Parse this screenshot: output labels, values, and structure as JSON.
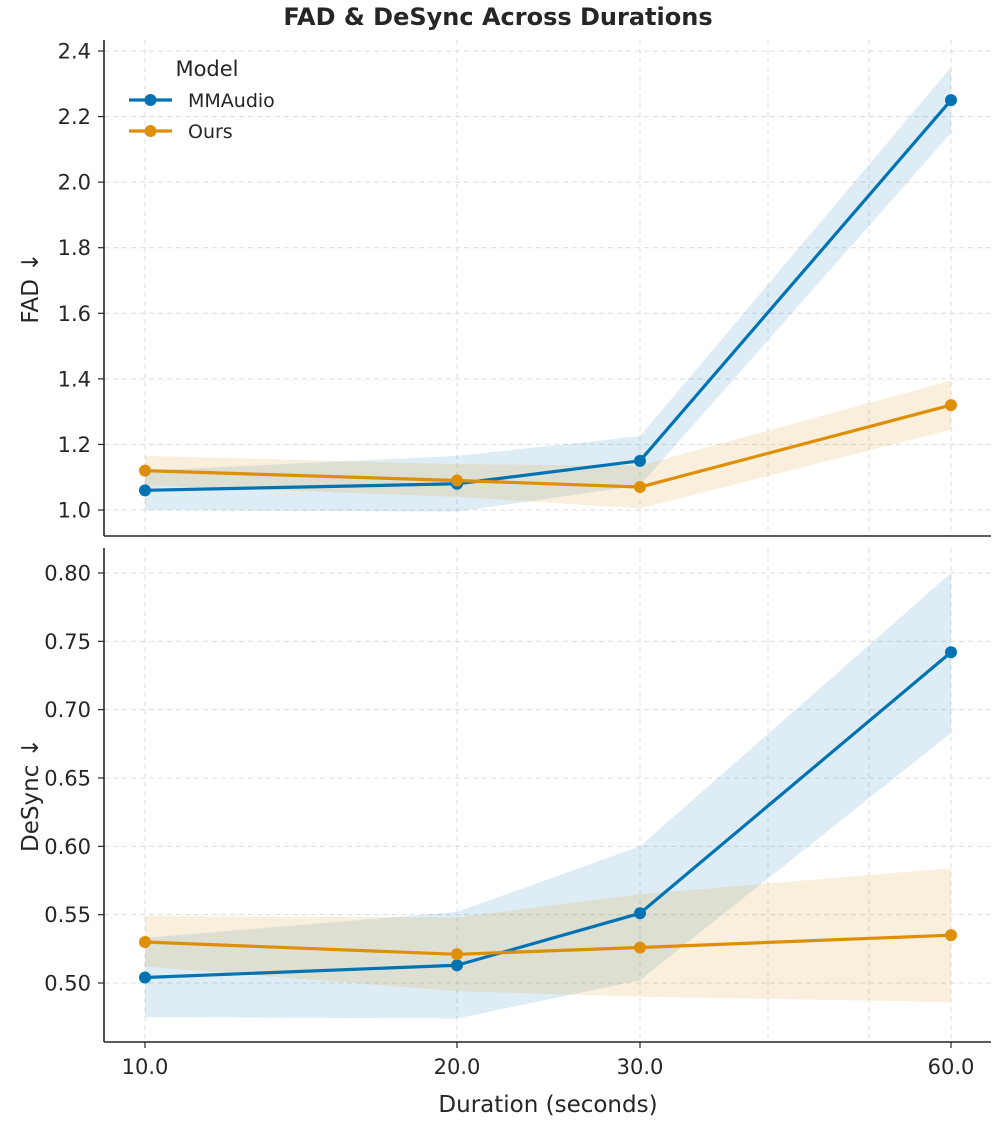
{
  "chart_data": {
    "type": "line",
    "title": "FAD & DeSync Across Durations",
    "xlabel": "Duration (seconds)",
    "x": [
      10,
      20,
      30,
      60
    ],
    "x_tick_labels": [
      "10.0",
      "20.0",
      "30.0",
      "60.0"
    ],
    "colors": {
      "MMAudio": "#0173b2",
      "Ours": "#de8f05"
    },
    "legend": {
      "title": "Model",
      "entries": [
        "MMAudio",
        "Ours"
      ],
      "placement": "top-left"
    },
    "panels": [
      {
        "id": "fad",
        "ylabel": "FAD ↓",
        "ylim": [
          0.92,
          2.43
        ],
        "yticks": [
          1.0,
          1.2,
          1.4,
          1.6,
          1.8,
          2.0,
          2.2,
          2.4
        ],
        "ytick_labels": [
          "1.0",
          "1.2",
          "1.4",
          "1.6",
          "1.8",
          "2.0",
          "2.2",
          "2.4"
        ],
        "series": [
          {
            "name": "MMAudio",
            "values": [
              1.06,
              1.08,
              1.15,
              2.25
            ],
            "lower": [
              1.0,
              0.995,
              1.075,
              2.15
            ],
            "upper": [
              1.12,
              1.165,
              1.225,
              2.35
            ]
          },
          {
            "name": "Ours",
            "values": [
              1.12,
              1.09,
              1.07,
              1.32
            ],
            "lower": [
              1.075,
              1.04,
              1.005,
              1.245
            ],
            "upper": [
              1.165,
              1.14,
              1.135,
              1.395
            ]
          }
        ]
      },
      {
        "id": "desync",
        "ylabel": "DeSync ↓",
        "ylim": [
          0.455,
          0.818
        ],
        "yticks": [
          0.5,
          0.55,
          0.6,
          0.65,
          0.7,
          0.75,
          0.8
        ],
        "ytick_labels": [
          "0.50",
          "0.55",
          "0.60",
          "0.65",
          "0.70",
          "0.75",
          "0.80"
        ],
        "series": [
          {
            "name": "MMAudio",
            "values": [
              0.504,
              0.513,
              0.551,
              0.742
            ],
            "lower": [
              0.475,
              0.474,
              0.502,
              0.683
            ],
            "upper": [
              0.533,
              0.552,
              0.6,
              0.8
            ]
          },
          {
            "name": "Ours",
            "values": [
              0.53,
              0.521,
              0.526,
              0.535
            ],
            "lower": [
              0.512,
              0.494,
              0.49,
              0.486
            ],
            "upper": [
              0.549,
              0.548,
              0.565,
              0.584
            ]
          }
        ]
      }
    ]
  }
}
